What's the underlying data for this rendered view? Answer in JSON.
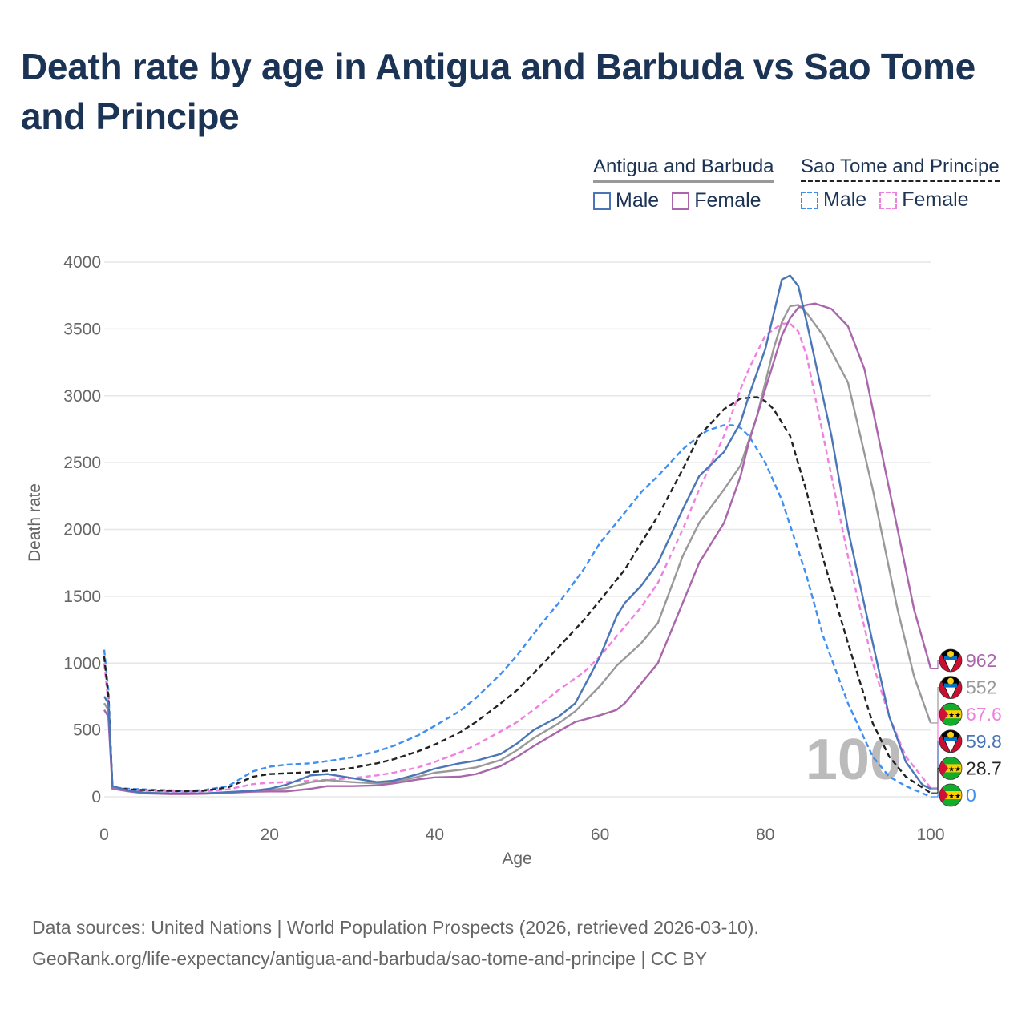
{
  "title": "Death rate by age in Antigua and Barbuda vs Sao Tome and Principe",
  "legend": {
    "groups": [
      {
        "name": "Antigua and Barbuda",
        "line_style": "solid",
        "items": [
          {
            "label": "Male",
            "color": "#4a76b8"
          },
          {
            "label": "Female",
            "color": "#aa66aa"
          }
        ]
      },
      {
        "name": "Sao Tome and Principe",
        "line_style": "dashed",
        "items": [
          {
            "label": "Male",
            "color": "#3f8ff0"
          },
          {
            "label": "Female",
            "color": "#f080e0"
          }
        ]
      }
    ]
  },
  "chart_data": {
    "type": "line",
    "title": "Death rate by age in Antigua and Barbuda vs Sao Tome and Principe",
    "xlabel": "Age",
    "ylabel": "Death rate",
    "xlim": [
      0,
      100
    ],
    "ylim": [
      0,
      4000
    ],
    "xticks": [
      "0",
      "20",
      "40",
      "60",
      "80",
      "100"
    ],
    "yticks": [
      "0",
      "500",
      "1000",
      "1500",
      "2000",
      "2500",
      "3000",
      "3500",
      "4000"
    ],
    "grid": true,
    "watermark": "100",
    "series": [
      {
        "name": "Antigua and Barbuda Male",
        "color": "#4a76b8",
        "dash": false,
        "x": [
          0,
          0.5,
          1,
          3,
          5,
          8,
          10,
          12,
          15,
          18,
          20,
          22,
          25,
          27,
          30,
          33,
          35,
          38,
          40,
          43,
          45,
          48,
          50,
          52,
          55,
          57,
          60,
          62,
          63,
          65,
          67,
          70,
          72,
          75,
          77,
          78,
          80,
          82,
          83,
          84,
          85,
          88,
          90,
          93,
          95,
          97,
          99,
          100
        ],
        "y": [
          750,
          700,
          80,
          45,
          30,
          25,
          25,
          25,
          35,
          45,
          60,
          90,
          160,
          170,
          140,
          110,
          120,
          170,
          210,
          250,
          270,
          320,
          400,
          500,
          600,
          700,
          1050,
          1350,
          1450,
          1580,
          1750,
          2150,
          2400,
          2580,
          2800,
          3000,
          3350,
          3870,
          3900,
          3820,
          3550,
          2700,
          2000,
          1150,
          600,
          260,
          90,
          60
        ],
        "end_label": "59.8"
      },
      {
        "name": "Antigua and Barbuda Female",
        "color": "#aa66aa",
        "dash": false,
        "x": [
          0,
          0.5,
          1,
          3,
          5,
          8,
          10,
          12,
          15,
          18,
          20,
          22,
          25,
          27,
          30,
          33,
          35,
          38,
          40,
          43,
          45,
          48,
          50,
          52,
          55,
          57,
          60,
          62,
          63,
          65,
          67,
          70,
          72,
          75,
          77,
          78,
          80,
          82,
          83,
          84,
          85,
          86,
          88,
          90,
          92,
          94,
          96,
          98,
          100
        ],
        "y": [
          650,
          600,
          60,
          40,
          25,
          20,
          20,
          22,
          30,
          38,
          40,
          40,
          60,
          80,
          80,
          85,
          100,
          130,
          145,
          150,
          170,
          230,
          300,
          380,
          490,
          560,
          610,
          650,
          700,
          850,
          1000,
          1450,
          1750,
          2050,
          2400,
          2650,
          3050,
          3450,
          3580,
          3660,
          3680,
          3690,
          3650,
          3520,
          3200,
          2600,
          2000,
          1400,
          962
        ],
        "end_label": "962"
      },
      {
        "name": "Antigua and Barbuda Total",
        "color": "#999999",
        "dash": false,
        "x": [
          0,
          0.5,
          1,
          3,
          5,
          8,
          10,
          12,
          15,
          18,
          20,
          22,
          25,
          27,
          30,
          33,
          35,
          38,
          40,
          43,
          45,
          48,
          50,
          52,
          55,
          57,
          60,
          62,
          65,
          67,
          70,
          72,
          75,
          77,
          79,
          80,
          81,
          82,
          83,
          84,
          85,
          87,
          90,
          93,
          96,
          98,
          100
        ],
        "y": [
          700,
          650,
          70,
          42,
          28,
          22,
          22,
          24,
          32,
          42,
          50,
          65,
          110,
          125,
          110,
          100,
          110,
          150,
          180,
          200,
          220,
          275,
          350,
          440,
          550,
          640,
          830,
          980,
          1150,
          1300,
          1800,
          2050,
          2300,
          2480,
          2850,
          3100,
          3350,
          3550,
          3670,
          3680,
          3620,
          3450,
          3100,
          2300,
          1400,
          900,
          552
        ],
        "end_label": "552"
      },
      {
        "name": "Sao Tome and Principe Male",
        "color": "#3f8ff0",
        "dash": true,
        "x": [
          0,
          0.5,
          1,
          3,
          5,
          8,
          10,
          12,
          15,
          18,
          20,
          22,
          25,
          28,
          30,
          33,
          35,
          38,
          40,
          43,
          45,
          48,
          50,
          53,
          55,
          58,
          60,
          62,
          65,
          67,
          70,
          72,
          73,
          75,
          76,
          77,
          78,
          80,
          82,
          85,
          87,
          90,
          93,
          95,
          97,
          100
        ],
        "y": [
          1100,
          800,
          70,
          60,
          55,
          48,
          45,
          50,
          80,
          190,
          225,
          240,
          250,
          275,
          295,
          340,
          380,
          460,
          530,
          640,
          740,
          920,
          1060,
          1300,
          1450,
          1700,
          1900,
          2050,
          2280,
          2400,
          2600,
          2700,
          2740,
          2780,
          2780,
          2760,
          2700,
          2500,
          2220,
          1650,
          1200,
          700,
          300,
          150,
          80,
          0
        ],
        "end_label": "0"
      },
      {
        "name": "Sao Tome and Principe Female",
        "color": "#f080e0",
        "dash": true,
        "x": [
          0,
          0.5,
          1,
          3,
          5,
          8,
          10,
          12,
          15,
          18,
          20,
          22,
          25,
          28,
          30,
          33,
          35,
          38,
          40,
          43,
          45,
          48,
          50,
          53,
          55,
          58,
          60,
          62,
          65,
          67,
          70,
          72,
          75,
          77,
          78,
          80,
          82,
          83,
          84,
          85,
          87,
          90,
          93,
          95,
          97,
          100
        ],
        "y": [
          1000,
          700,
          65,
          52,
          45,
          40,
          38,
          40,
          55,
          95,
          105,
          110,
          120,
          130,
          140,
          160,
          180,
          220,
          260,
          330,
          390,
          490,
          560,
          700,
          800,
          930,
          1050,
          1200,
          1420,
          1600,
          2000,
          2300,
          2700,
          3050,
          3200,
          3450,
          3540,
          3540,
          3480,
          3300,
          2700,
          1800,
          1000,
          600,
          300,
          67.6
        ],
        "end_label": "67.6"
      },
      {
        "name": "Sao Tome and Principe Total",
        "color": "#222222",
        "dash": true,
        "x": [
          0,
          0.5,
          1,
          3,
          5,
          8,
          10,
          12,
          15,
          18,
          20,
          22,
          25,
          28,
          30,
          33,
          35,
          38,
          40,
          43,
          45,
          48,
          50,
          53,
          55,
          58,
          60,
          63,
          65,
          67,
          70,
          72,
          75,
          77,
          79,
          80,
          81,
          83,
          85,
          87,
          90,
          93,
          95,
          97,
          100
        ],
        "y": [
          1050,
          750,
          70,
          55,
          50,
          44,
          42,
          45,
          70,
          150,
          170,
          175,
          185,
          200,
          215,
          250,
          280,
          340,
          390,
          480,
          560,
          700,
          800,
          990,
          1120,
          1320,
          1470,
          1700,
          1900,
          2100,
          2450,
          2700,
          2900,
          2980,
          2990,
          2960,
          2900,
          2700,
          2280,
          1780,
          1150,
          550,
          300,
          150,
          28.7
        ],
        "end_label": "28.7"
      }
    ]
  },
  "end_labels": [
    {
      "text": "962",
      "series": 1,
      "flag": "antigua-flag-icon",
      "color": "#aa66aa"
    },
    {
      "text": "552",
      "series": 2,
      "flag": "antigua-flag-icon",
      "color": "#999999"
    },
    {
      "text": "67.6",
      "series": 4,
      "flag": "sao-tome-flag-icon",
      "color": "#f080e0"
    },
    {
      "text": "59.8",
      "series": 0,
      "flag": "antigua-flag-icon",
      "color": "#4a76b8"
    },
    {
      "text": "28.7",
      "series": 5,
      "flag": "sao-tome-flag-icon",
      "color": "#222222"
    },
    {
      "text": "0",
      "series": 3,
      "flag": "sao-tome-flag-icon",
      "color": "#3f8ff0"
    }
  ],
  "source": {
    "line1": "Data sources: United Nations | World Population Prospects (2026, retrieved 2026-03-10).",
    "line2": "GeoRank.org/life-expectancy/antigua-and-barbuda/sao-tome-and-principe | CC BY"
  }
}
